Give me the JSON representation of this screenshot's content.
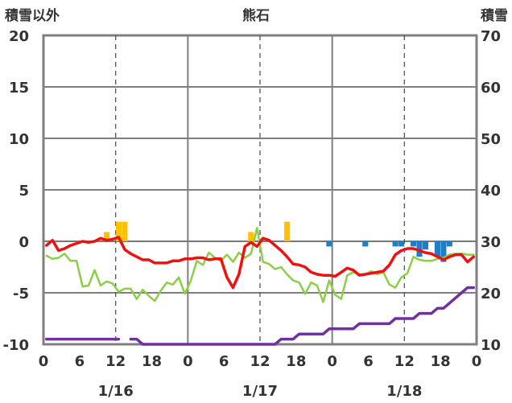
{
  "chart_data": {
    "type": "line",
    "title": "熊石",
    "ylabel_left": "積雪以外",
    "ylabel_right": "積雪",
    "ylim_left": [
      -10,
      20
    ],
    "ylim_right": [
      10,
      70
    ],
    "yticks_left": [
      "20",
      "15",
      "10",
      "5",
      "0",
      "-5",
      "-10"
    ],
    "yticks_right": [
      "70",
      "60",
      "50",
      "40",
      "30",
      "20",
      "10"
    ],
    "xlim_hours": [
      0,
      72
    ],
    "xtick_labels": [
      "0",
      "6",
      "12",
      "18",
      "0",
      "6",
      "12",
      "18",
      "0",
      "6",
      "12",
      "18",
      "0"
    ],
    "date_labels": [
      "1/16",
      "1/17",
      "1/18"
    ],
    "colors": {
      "temperature": "#ee1111",
      "secondary": "#8dce48",
      "snow_depth": "#7030a0",
      "precip_positive": "#ffc000",
      "precip_negative": "#1f7fc6",
      "axis": "#7f7f7f",
      "grid": "#555555"
    },
    "series": [
      {
        "key": "temperature",
        "axis": "left",
        "x": [
          0,
          1,
          2,
          3,
          4,
          5,
          6,
          7,
          8,
          9,
          10,
          11,
          12,
          13,
          14,
          15,
          16,
          17,
          18,
          19,
          20,
          21,
          22,
          23,
          24,
          25,
          26,
          27,
          28,
          29,
          30,
          31,
          32,
          33,
          34,
          35,
          36,
          37,
          38,
          39,
          40,
          41,
          42,
          43,
          44,
          45,
          46,
          47,
          48,
          49,
          50,
          51,
          52,
          53,
          54,
          55,
          56,
          57,
          58,
          59,
          60,
          61,
          62,
          63,
          64,
          65,
          66,
          67,
          68,
          69,
          70,
          71
        ],
        "values": [
          -0.4,
          0.1,
          -0.9,
          -0.7,
          -0.4,
          -0.2,
          0.0,
          -0.1,
          0.0,
          0.3,
          0.1,
          0.2,
          0.4,
          -0.8,
          -1.2,
          -1.5,
          -1.8,
          -1.8,
          -2.1,
          -2.1,
          -2.1,
          -1.9,
          -1.9,
          -1.7,
          -1.7,
          -1.6,
          -1.6,
          -1.8,
          -1.7,
          -1.7,
          -3.5,
          -4.5,
          -3.2,
          -0.5,
          -0.1,
          -0.5,
          0.3,
          0.1,
          -0.4,
          -0.9,
          -1.5,
          -2.2,
          -2.3,
          -2.5,
          -3.0,
          -3.2,
          -3.3,
          -3.3,
          -3.4,
          -3.0,
          -2.6,
          -2.8,
          -3.3,
          -3.2,
          -3.1,
          -3.0,
          -2.9,
          -2.3,
          -1.3,
          -0.9,
          -0.7,
          -0.7,
          -0.9,
          -1.1,
          -1.2,
          -1.5,
          -1.8,
          -1.5,
          -1.3,
          -1.3,
          -2.0,
          -1.5
        ]
      },
      {
        "key": "secondary",
        "axis": "left",
        "x": [
          0,
          1,
          2,
          3,
          4,
          5,
          6,
          7,
          8,
          9,
          10,
          11,
          12,
          13,
          14,
          15,
          16,
          17,
          18,
          19,
          20,
          21,
          22,
          23,
          24,
          25,
          26,
          27,
          28,
          29,
          30,
          31,
          32,
          33,
          34,
          35,
          36,
          37,
          38,
          39,
          40,
          41,
          42,
          43,
          44,
          45,
          46,
          47,
          48,
          49,
          50,
          51,
          52,
          53,
          54,
          55,
          56,
          57,
          58,
          59,
          60,
          61,
          62,
          63,
          64,
          65,
          66,
          67,
          68,
          69,
          70,
          71
        ],
        "values": [
          -1.4,
          -1.7,
          -1.6,
          -1.2,
          -1.9,
          -1.9,
          -4.4,
          -4.3,
          -2.8,
          -4.3,
          -3.9,
          -4.1,
          -4.9,
          -4.6,
          -4.6,
          -5.6,
          -4.7,
          -5.3,
          -5.8,
          -4.8,
          -4.0,
          -4.2,
          -3.5,
          -5.1,
          -3.8,
          -1.9,
          -2.3,
          -1.1,
          -1.6,
          -1.9,
          -1.3,
          -2.0,
          -1.1,
          -1.6,
          -1.2,
          1.3,
          -2.0,
          -2.2,
          -2.7,
          -2.5,
          -3.2,
          -3.8,
          -4.0,
          -5.1,
          -4.0,
          -4.3,
          -5.9,
          -3.8,
          -5.2,
          -5.6,
          -3.3,
          -3.0,
          -3.2,
          -3.2,
          -2.9,
          -3.2,
          -3.0,
          -4.2,
          -4.5,
          -3.5,
          -3.1,
          -1.5,
          -1.8,
          -1.9,
          -1.9,
          -1.7,
          -1.6,
          -1.3,
          -1.2,
          -1.2,
          -1.3,
          -1.3
        ]
      },
      {
        "key": "snow_depth",
        "axis": "right",
        "x": [
          0,
          1,
          2,
          3,
          4,
          5,
          6,
          7,
          8,
          9,
          10,
          11,
          12,
          null,
          14,
          15,
          16,
          17,
          18,
          19,
          20,
          21,
          22,
          23,
          24,
          25,
          26,
          27,
          28,
          29,
          30,
          31,
          32,
          33,
          34,
          35,
          36,
          37,
          38,
          39,
          40,
          41,
          42,
          43,
          44,
          45,
          46,
          47,
          48,
          49,
          50,
          51,
          52,
          53,
          54,
          55,
          56,
          57,
          58,
          59,
          60,
          61,
          62,
          63,
          64,
          65,
          66,
          67,
          68,
          69,
          70,
          71
        ],
        "values": [
          11,
          11,
          11,
          11,
          11,
          11,
          11,
          11,
          11,
          11,
          11,
          11,
          11,
          null,
          11,
          11,
          10,
          10,
          10,
          10,
          10,
          10,
          10,
          10,
          10,
          10,
          10,
          10,
          10,
          10,
          10,
          10,
          10,
          10,
          10,
          10,
          10,
          10,
          10,
          11,
          11,
          11,
          12,
          12,
          12,
          12,
          12,
          13,
          13,
          13,
          13,
          13,
          14,
          14,
          14,
          14,
          14,
          14,
          15,
          15,
          15,
          15,
          16,
          16,
          16,
          17,
          17,
          18,
          19,
          20,
          21,
          21
        ]
      }
    ],
    "bars": {
      "axis": "left",
      "x": [
        10,
        12,
        13,
        34,
        40,
        47,
        53,
        58,
        59,
        61,
        62,
        63,
        65,
        66,
        67
      ],
      "values": [
        0.9,
        1.9,
        1.9,
        0.9,
        1.9,
        -0.5,
        -0.5,
        -0.5,
        -0.5,
        -0.5,
        -1.5,
        -0.8,
        -1.5,
        -2.0,
        -0.5
      ]
    }
  }
}
